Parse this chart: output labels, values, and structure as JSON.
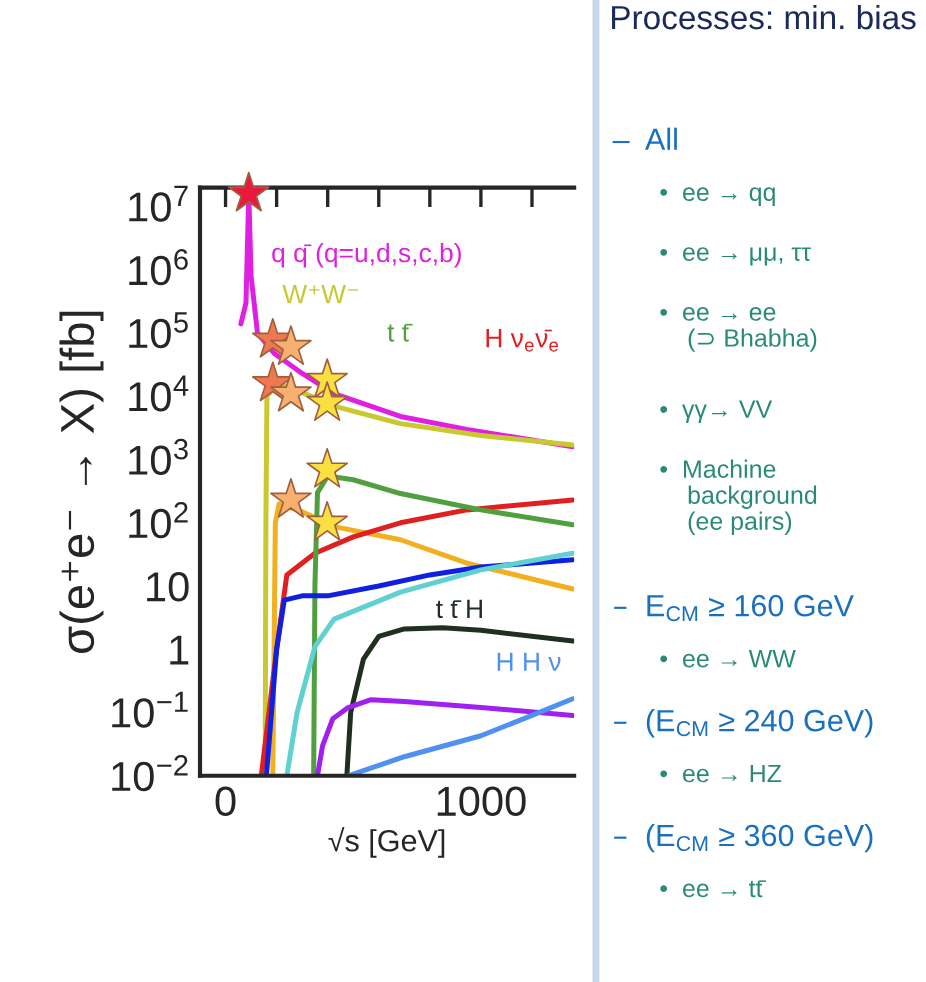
{
  "chart_data": [
    {
      "type": "line",
      "xlabel": "√s [GeV]",
      "ylabel": "σ(e⁺e⁻ → X) [fb]",
      "log": "y",
      "grid": false,
      "xlim": [
        -100,
        1365
      ],
      "ylim": [
        0.01,
        20000000
      ],
      "xticks": [
        {
          "value": 0,
          "label": "0"
        },
        {
          "value": 200,
          "label": null
        },
        {
          "value": 400,
          "label": null
        },
        {
          "value": 600,
          "label": null
        },
        {
          "value": 800,
          "label": null
        },
        {
          "value": 1000,
          "label": "1000"
        },
        {
          "value": 1200,
          "label": null
        }
      ],
      "yticks": [
        {
          "value": 0.01,
          "label": "10$^{−2}$"
        },
        {
          "value": 0.1,
          "label": "10$^{−1}$"
        },
        {
          "value": 1,
          "label": "1"
        },
        {
          "value": 10,
          "label": "10"
        },
        {
          "value": 100,
          "label": "10$^{2}$"
        },
        {
          "value": 1000,
          "label": "10$^{3}$"
        },
        {
          "value": 10000,
          "label": "10$^{4}$"
        },
        {
          "value": 100000,
          "label": "10$^{5}$"
        },
        {
          "value": 1000000,
          "label": "10$^{6}$"
        },
        {
          "value": 10000000,
          "label": "10$^{7}$"
        }
      ],
      "series": [
        {
          "name": "q q̄ (q=u,d,s,c,b)",
          "color": "#e020e0",
          "x": [
            60,
            80,
            91,
            100,
            125,
            190,
            300,
            425,
            685,
            945,
            1360
          ],
          "values": [
            140000,
            300000,
            16000000,
            800000,
            100000,
            48000,
            23000,
            11000,
            4800,
            3000,
            1600
          ]
        },
        {
          "name": "W⁺W⁻",
          "color": "#c8c830",
          "x": [
            155,
            158,
            162,
            200,
            250,
            425,
            685,
            1000,
            1360
          ],
          "values": [
            0.01,
            100,
            10000,
            16000,
            14000,
            7000,
            3700,
            2400,
            1700
          ]
        },
        {
          "color": "#f0b020",
          "x": [
            185,
            190,
            195,
            210,
            300,
            425,
            685,
            945,
            1360
          ],
          "values": [
            0.01,
            1,
            100,
            200,
            150,
            87,
            54,
            23,
            9
          ]
        },
        {
          "name": "H ν$_{e}$ν̄$_{e}$",
          "color": "#e02020",
          "x": [
            140,
            200,
            240,
            350,
            500,
            685,
            945,
            1360
          ],
          "values": [
            0.01,
            1,
            15,
            33,
            60,
            100,
            160,
            230
          ]
        },
        {
          "name": "t t̄",
          "color": "#50a040",
          "x": [
            345,
            350,
            360,
            400,
            500,
            685,
            1000,
            1360
          ],
          "values": [
            0.01,
            10,
            300,
            550,
            480,
            290,
            160,
            93
          ]
        },
        {
          "color": "#1020e0",
          "x": [
            160,
            200,
            230,
            300,
            400,
            600,
            800,
            1000,
            1360
          ],
          "values": [
            0.01,
            1,
            6,
            7,
            7,
            10,
            15,
            20,
            26
          ]
        },
        {
          "color": "#60d0d0",
          "x": [
            240,
            280,
            350,
            425,
            685,
            1000,
            1360
          ],
          "values": [
            0.01,
            0.1,
            1.1,
            3,
            8,
            18,
            33
          ]
        },
        {
          "name": "t t̄ H",
          "color": "#203020",
          "x": [
            475,
            490,
            540,
            600,
            700,
            850,
            1000,
            1360
          ],
          "values": [
            0.01,
            0.1,
            0.7,
            1.6,
            2.1,
            2.2,
            2,
            1.35
          ]
        },
        {
          "color": "#a020f0",
          "x": [
            360,
            380,
            420,
            480,
            570,
            700,
            1000,
            1360
          ],
          "values": [
            0.01,
            0.03,
            0.08,
            0.12,
            0.16,
            0.15,
            0.12,
            0.09
          ]
        },
        {
          "name": "H H ν",
          "color": "#5090f0",
          "x": [
            480,
            700,
            1000,
            1200,
            1360
          ],
          "values": [
            0.01,
            0.02,
            0.043,
            0.09,
            0.165
          ]
        },
        {
          "type": "scatter",
          "marker": "star",
          "x": [
            91,
            185,
            185,
            256,
            256,
            256,
            398,
            398,
            398,
            398
          ],
          "values": [
            16000000,
            78000,
            16000,
            60000,
            11000,
            230,
            18000,
            7800,
            690,
            100
          ],
          "colors": [
            "#e8193c",
            "#f07850",
            "#f07850",
            "#f8b070",
            "#f8b070",
            "#f8b070",
            "#f8e040",
            "#f8e040",
            "#f8e040",
            "#f8e040"
          ]
        }
      ]
    },
    {
      "type": "other",
      "title": "Processes: min. bias",
      "annotations": [
        "–  All",
        "•  ee → qq",
        "•  ee → μμ, ττ",
        "•  ee → ee\n    (⊃ Bhabha)",
        "•  γγ→ VV",
        "•  Machine\n    background\n    (ee pairs)",
        "–  E$_{CM}$ ≥ 160 GeV",
        "•  ee → WW",
        "–  (E$_{CM}$ ≥ 240 GeV)",
        "•  ee → HZ",
        "–  (E$_{CM}$ ≥ 360 GeV)",
        "•  ee → tt̄"
      ]
    }
  ]
}
